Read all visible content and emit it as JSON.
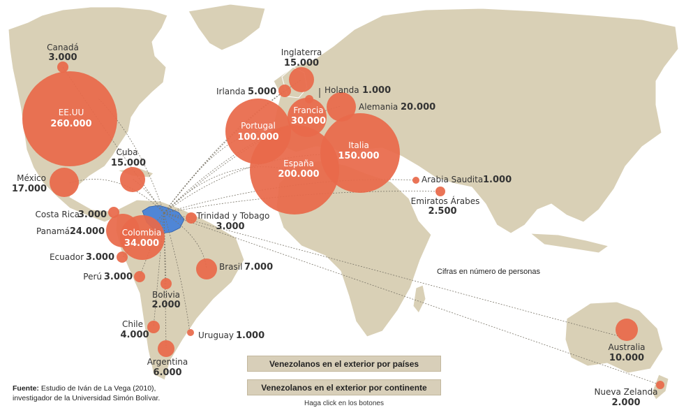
{
  "colors": {
    "land": "#d9d0b6",
    "coast": "#ffffff",
    "bubble": "#e8694a",
    "venezuela": "#4f86d6",
    "button_bg": "#d8cfb9",
    "connector": "#7a7568"
  },
  "countries": [
    {
      "id": "canada",
      "name": "Canadá",
      "value": "3.000"
    },
    {
      "id": "eeuu",
      "name": "EE.UU",
      "value": "260.000"
    },
    {
      "id": "mexico",
      "name": "México",
      "value": "17.000"
    },
    {
      "id": "cuba",
      "name": "Cuba",
      "value": "15.000"
    },
    {
      "id": "costa-rica",
      "name": "Costa Rica",
      "value": "3.000"
    },
    {
      "id": "panama",
      "name": "Panamá",
      "value": "24.000"
    },
    {
      "id": "colombia",
      "name": "Colombia",
      "value": "34.000"
    },
    {
      "id": "ecuador",
      "name": "Ecuador",
      "value": "3.000"
    },
    {
      "id": "peru",
      "name": "Perú",
      "value": "3.000"
    },
    {
      "id": "bolivia",
      "name": "Bolivia",
      "value": "2.000"
    },
    {
      "id": "chile",
      "name": "Chile",
      "value": "4.000"
    },
    {
      "id": "argentina",
      "name": "Argentina",
      "value": "6.000"
    },
    {
      "id": "uruguay",
      "name": "Uruguay",
      "value": "1.000"
    },
    {
      "id": "brasil",
      "name": "Brasil",
      "value": "7.000"
    },
    {
      "id": "trinidad",
      "name": "Trinidad y Tobago",
      "value": "3.000"
    },
    {
      "id": "inglaterra",
      "name": "Inglaterra",
      "value": "15.000"
    },
    {
      "id": "irlanda",
      "name": "Irlanda",
      "value": "5.000"
    },
    {
      "id": "holanda",
      "name": "Holanda",
      "value": "1.000"
    },
    {
      "id": "alemania",
      "name": "Alemania",
      "value": "20.000"
    },
    {
      "id": "francia",
      "name": "Francia",
      "value": "30.000"
    },
    {
      "id": "portugal",
      "name": "Portugal",
      "value": "100.000"
    },
    {
      "id": "espana",
      "name": "España",
      "value": "200.000"
    },
    {
      "id": "italia",
      "name": "Italia",
      "value": "150.000"
    },
    {
      "id": "arabia",
      "name": "Arabia Saudita",
      "value": "1.000"
    },
    {
      "id": "emiratos",
      "name": "Emiratos Árabes",
      "value": "2.500"
    },
    {
      "id": "australia",
      "name": "Australia",
      "value": "10.000"
    },
    {
      "id": "nueva-zelanda",
      "name": "Nueva Zelanda",
      "value": "2.000"
    }
  ],
  "buttons": {
    "by_country": "Venezolanos en el exterior por países",
    "by_continent": "Venezolanos en el exterior por continente"
  },
  "hint": "Haga click en los botones",
  "note": "Cifras en número de personas",
  "source": {
    "label": "Fuente:",
    "line1": "Estudio de Iván de La Vega (2010),",
    "line2": "investigador de la Universidad Simón Bolívar."
  }
}
